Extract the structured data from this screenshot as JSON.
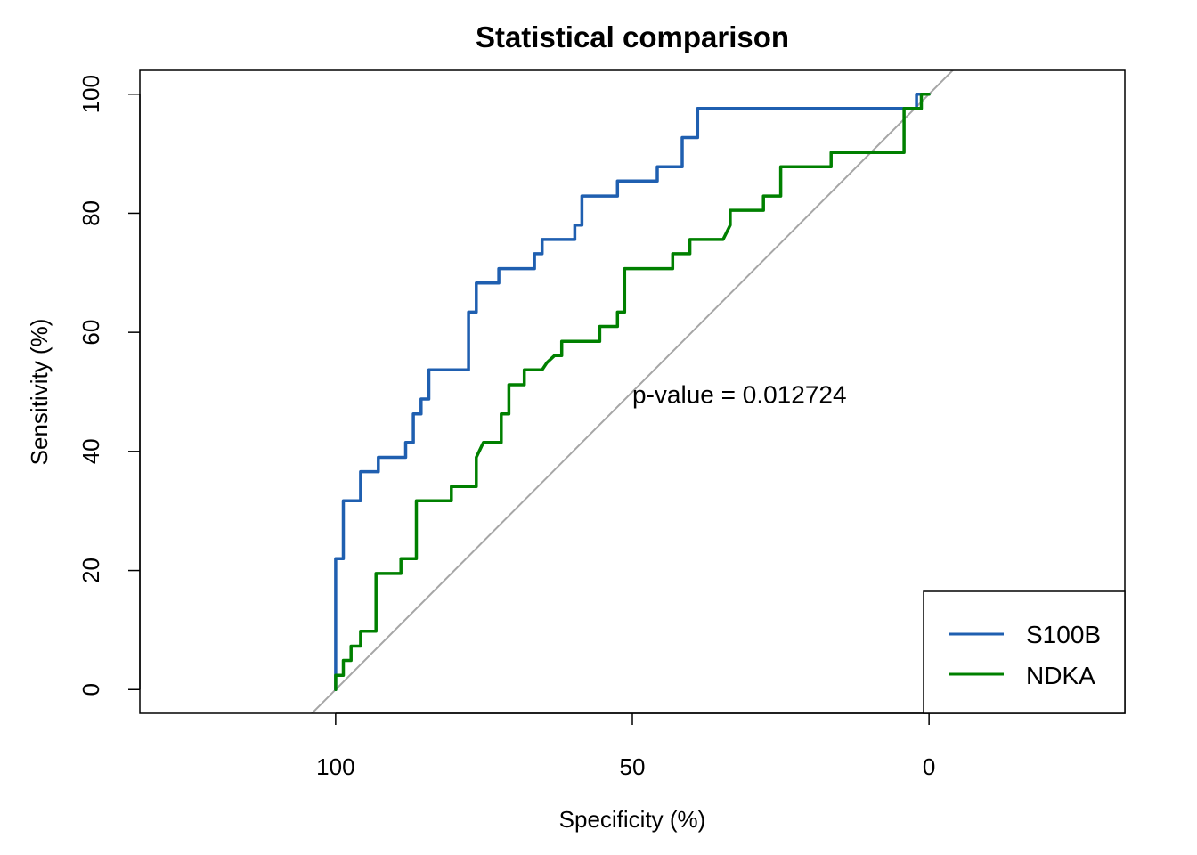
{
  "chart_data": {
    "type": "line",
    "title": "Statistical comparison",
    "xlabel": "Specificity (%)",
    "ylabel": "Sensitivity (%)",
    "x_reversed": true,
    "xlim": [
      133,
      -33
    ],
    "ylim": [
      -4,
      104
    ],
    "x_ticks": [
      100,
      50,
      0
    ],
    "y_ticks": [
      0,
      20,
      40,
      60,
      80,
      100
    ],
    "x_tick_labels": [
      "100",
      "50",
      "0"
    ],
    "y_tick_labels": [
      "0",
      "20",
      "40",
      "60",
      "80",
      "100"
    ],
    "grid": false,
    "legend_position": "bottom-right",
    "reference_line": {
      "from": [
        100,
        0
      ],
      "to": [
        0,
        100
      ],
      "color": "#A6A6A6"
    },
    "annotation": {
      "text": "p-value = 0.012724",
      "x": 50,
      "y": 49.5
    },
    "series": [
      {
        "name": "S100B",
        "color": "#1F5FB0",
        "points": [
          [
            100,
            0
          ],
          [
            100,
            22
          ],
          [
            98.7,
            22
          ],
          [
            98.7,
            31.7
          ],
          [
            95.8,
            31.7
          ],
          [
            95.8,
            36.6
          ],
          [
            92.8,
            36.6
          ],
          [
            92.8,
            39
          ],
          [
            88.2,
            39
          ],
          [
            88.2,
            41.5
          ],
          [
            86.9,
            41.5
          ],
          [
            86.9,
            46.3
          ],
          [
            85.6,
            46.3
          ],
          [
            85.6,
            48.8
          ],
          [
            84.3,
            48.8
          ],
          [
            84.3,
            53.7
          ],
          [
            77.6,
            53.7
          ],
          [
            77.6,
            63.4
          ],
          [
            76.3,
            63.4
          ],
          [
            76.3,
            68.3
          ],
          [
            72.5,
            68.3
          ],
          [
            72.5,
            70.7
          ],
          [
            66.5,
            70.7
          ],
          [
            66.5,
            73.2
          ],
          [
            65.2,
            73.2
          ],
          [
            65.2,
            75.6
          ],
          [
            59.7,
            75.6
          ],
          [
            59.7,
            78
          ],
          [
            58.5,
            78
          ],
          [
            58.5,
            82.9
          ],
          [
            52.5,
            82.9
          ],
          [
            52.5,
            85.4
          ],
          [
            45.8,
            85.4
          ],
          [
            45.8,
            87.8
          ],
          [
            41.6,
            87.8
          ],
          [
            41.6,
            92.7
          ],
          [
            39,
            92.7
          ],
          [
            39,
            97.6
          ],
          [
            2.1,
            97.6
          ],
          [
            2.1,
            100
          ],
          [
            0,
            100
          ]
        ]
      },
      {
        "name": "NDKA",
        "color": "#008000",
        "points": [
          [
            100,
            0
          ],
          [
            100,
            2.4
          ],
          [
            98.7,
            2.4
          ],
          [
            98.7,
            4.9
          ],
          [
            97.4,
            4.9
          ],
          [
            97.4,
            7.3
          ],
          [
            95.8,
            7.3
          ],
          [
            95.8,
            9.8
          ],
          [
            93.2,
            9.8
          ],
          [
            93.2,
            19.5
          ],
          [
            89,
            19.5
          ],
          [
            89,
            22
          ],
          [
            86.4,
            22
          ],
          [
            86.4,
            31.7
          ],
          [
            80.5,
            31.7
          ],
          [
            80.5,
            34.1
          ],
          [
            76.3,
            34.1
          ],
          [
            76.3,
            39
          ],
          [
            75.1,
            41.5
          ],
          [
            72.1,
            41.5
          ],
          [
            72.1,
            46.3
          ],
          [
            70.8,
            46.3
          ],
          [
            70.8,
            51.2
          ],
          [
            68.2,
            51.2
          ],
          [
            68.2,
            53.7
          ],
          [
            65.2,
            53.7
          ],
          [
            64.4,
            54.9
          ],
          [
            63.1,
            56.1
          ],
          [
            61.9,
            56.1
          ],
          [
            61.9,
            58.5
          ],
          [
            55.5,
            58.5
          ],
          [
            55.5,
            61
          ],
          [
            52.5,
            61
          ],
          [
            52.5,
            63.4
          ],
          [
            51.3,
            63.4
          ],
          [
            51.3,
            70.7
          ],
          [
            43.2,
            70.7
          ],
          [
            43.2,
            73.2
          ],
          [
            40.3,
            73.2
          ],
          [
            40.3,
            75.6
          ],
          [
            34.7,
            75.6
          ],
          [
            33.5,
            78
          ],
          [
            33.5,
            80.5
          ],
          [
            27.9,
            80.5
          ],
          [
            27.9,
            82.9
          ],
          [
            25,
            82.9
          ],
          [
            25,
            87.8
          ],
          [
            16.5,
            87.8
          ],
          [
            16.5,
            90.2
          ],
          [
            4.2,
            90.2
          ],
          [
            4.2,
            97.6
          ],
          [
            1.3,
            97.6
          ],
          [
            1.3,
            100
          ],
          [
            0,
            100
          ]
        ]
      }
    ]
  }
}
